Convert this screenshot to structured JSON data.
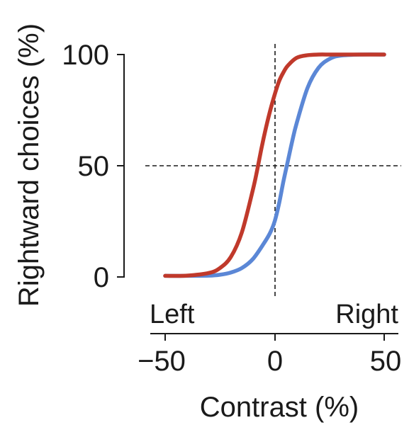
{
  "chart_data": {
    "type": "line",
    "title": "",
    "xlabel": "Contrast (%)",
    "ylabel": "Rightward choices (%)",
    "xlim": [
      -55,
      55
    ],
    "ylim": [
      0,
      100
    ],
    "xticks": [
      -50,
      0,
      50
    ],
    "yticks": [
      0,
      50,
      100
    ],
    "x_tick_labels": [
      "−50",
      "0",
      "50"
    ],
    "y_tick_labels": [
      "0",
      "50",
      "100"
    ],
    "direction_labels": {
      "left": "Left",
      "right": "Right"
    },
    "reference_lines": {
      "x": 0,
      "y": 50,
      "style": "dashed"
    },
    "grid": false,
    "legend": "none",
    "series": [
      {
        "color": "#c0392b",
        "x": [
          -50,
          -40,
          -30,
          -25,
          -20,
          -15,
          -10,
          -8,
          -6,
          -4,
          -2,
          0,
          2,
          4,
          6,
          10,
          15,
          20,
          25,
          30,
          40,
          50
        ],
        "y": [
          0.5,
          0.6,
          1.8,
          4,
          9,
          20,
          39,
          48,
          58,
          67,
          75,
          82,
          88,
          92,
          95,
          98.5,
          99.7,
          100,
          100,
          100,
          100,
          100
        ]
      },
      {
        "color": "#5b87d6",
        "x": [
          -50,
          -40,
          -30,
          -25,
          -20,
          -15,
          -10,
          -5,
          -2,
          0,
          2,
          4,
          6,
          8,
          10,
          15,
          20,
          25,
          30,
          40,
          50
        ],
        "y": [
          0.5,
          0.5,
          0.6,
          1,
          2,
          4,
          8,
          15,
          20,
          25,
          33,
          43,
          52,
          61,
          69,
          85,
          94,
          98,
          99.5,
          100,
          100
        ]
      }
    ]
  }
}
